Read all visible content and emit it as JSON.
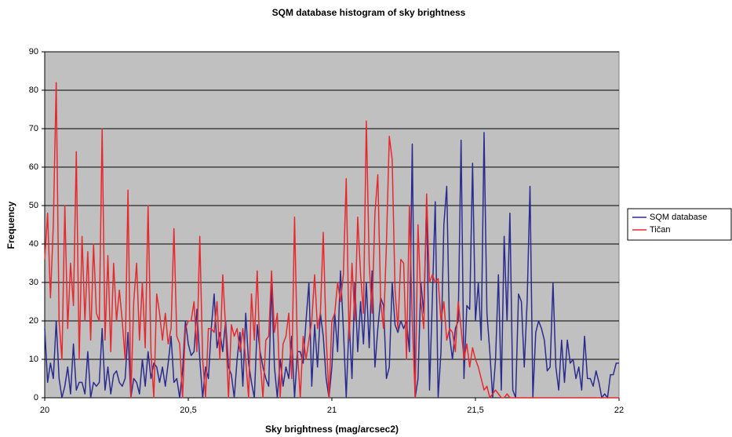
{
  "chart_data": {
    "type": "line",
    "title": "SQM database histogram of sky brightness",
    "xlabel": "Sky brightness (mag/arcsec2)",
    "ylabel": "Frequency",
    "x": [
      20,
      20.01,
      20.02,
      20.03,
      20.04,
      20.05,
      20.06,
      20.07,
      20.08,
      20.09,
      20.1,
      20.11,
      20.12,
      20.13,
      20.14,
      20.15,
      20.16,
      20.17,
      20.18,
      20.19,
      20.2,
      20.21,
      20.22,
      20.23,
      20.24,
      20.25,
      20.26,
      20.27,
      20.28,
      20.29,
      20.3,
      20.31,
      20.32,
      20.33,
      20.34,
      20.35,
      20.36,
      20.37,
      20.38,
      20.39,
      20.4,
      20.41,
      20.42,
      20.43,
      20.44,
      20.45,
      20.46,
      20.47,
      20.48,
      20.49,
      20.5,
      20.51,
      20.52,
      20.53,
      20.54,
      20.55,
      20.56,
      20.57,
      20.58,
      20.59,
      20.6,
      20.61,
      20.62,
      20.63,
      20.64,
      20.65,
      20.66,
      20.67,
      20.68,
      20.69,
      20.7,
      20.71,
      20.72,
      20.73,
      20.74,
      20.75,
      20.76,
      20.77,
      20.78,
      20.79,
      20.8,
      20.81,
      20.82,
      20.83,
      20.84,
      20.85,
      20.86,
      20.87,
      20.88,
      20.89,
      20.9,
      20.91,
      20.92,
      20.93,
      20.94,
      20.95,
      20.96,
      20.97,
      20.98,
      20.99,
      21,
      21.01,
      21.02,
      21.03,
      21.04,
      21.05,
      21.06,
      21.07,
      21.08,
      21.09,
      21.1,
      21.11,
      21.12,
      21.13,
      21.14,
      21.15,
      21.16,
      21.17,
      21.18,
      21.19,
      21.2,
      21.21,
      21.22,
      21.23,
      21.24,
      21.25,
      21.26,
      21.27,
      21.28,
      21.29,
      21.3,
      21.31,
      21.32,
      21.33,
      21.34,
      21.35,
      21.36,
      21.37,
      21.38,
      21.39,
      21.4,
      21.41,
      21.42,
      21.43,
      21.44,
      21.45,
      21.46,
      21.47,
      21.48,
      21.49,
      21.5,
      21.51,
      21.52,
      21.53,
      21.54,
      21.55,
      21.56,
      21.57,
      21.58,
      21.59,
      21.6,
      21.61,
      21.62,
      21.63,
      21.64,
      21.65,
      21.66,
      21.67,
      21.68,
      21.69,
      21.7,
      21.71,
      21.72,
      21.73,
      21.74,
      21.75,
      21.76,
      21.77,
      21.78,
      21.79,
      21.8,
      21.81,
      21.82,
      21.83,
      21.84,
      21.85,
      21.86,
      21.87,
      21.88,
      21.89,
      21.9,
      21.91,
      21.92,
      21.93,
      21.94,
      21.95,
      21.96,
      21.97,
      21.98,
      21.99,
      22
    ],
    "series": [
      {
        "name": "SQM database",
        "color": "#2b2b8f",
        "values": [
          18,
          4,
          9,
          5,
          20,
          5,
          0,
          3,
          8,
          1,
          14,
          2,
          4,
          4,
          1,
          12,
          0,
          4,
          3,
          4,
          18,
          2,
          8,
          1,
          6,
          7,
          4,
          3,
          5,
          17,
          0,
          5,
          4,
          1,
          10,
          3,
          12,
          5,
          9,
          8,
          4,
          8,
          3,
          9,
          16,
          4,
          5,
          0,
          7,
          20,
          14,
          11,
          12,
          23,
          10,
          0,
          8,
          5,
          18,
          27,
          13,
          17,
          12,
          20,
          8,
          6,
          0,
          10,
          17,
          3,
          22,
          9,
          4,
          0,
          19,
          12,
          8,
          5,
          3,
          30,
          8,
          0,
          10,
          3,
          8,
          5,
          16,
          0,
          12,
          12,
          9,
          20,
          30,
          3,
          19,
          8,
          22,
          16,
          5,
          0,
          8,
          22,
          12,
          33,
          18,
          0,
          20,
          5,
          30,
          12,
          25,
          14,
          30,
          13,
          33,
          8,
          18,
          26,
          24,
          5,
          8,
          30,
          19,
          17,
          20,
          18,
          20,
          12,
          66,
          0,
          5,
          30,
          22,
          51,
          2,
          26,
          51,
          0,
          12,
          45,
          55,
          16,
          10,
          18,
          20,
          67,
          5,
          24,
          23,
          61,
          20,
          30,
          15,
          69,
          22,
          12,
          0,
          10,
          32,
          2,
          42,
          20,
          48,
          2,
          0,
          27,
          25,
          8,
          25,
          55,
          0,
          17,
          20,
          18,
          15,
          7,
          8,
          30,
          8,
          2,
          15,
          4,
          15,
          9,
          10,
          5,
          8,
          2,
          16,
          5,
          5,
          3,
          7,
          4,
          0,
          1,
          0,
          6,
          6,
          9,
          9
        ]
      },
      {
        "name": "Tičan",
        "color": "#e8282e",
        "values": [
          36,
          48,
          26,
          45,
          82,
          20,
          10,
          50,
          18,
          35,
          24,
          64,
          10,
          42,
          20,
          38,
          15,
          40,
          22,
          20,
          70,
          15,
          37,
          12,
          35,
          20,
          28,
          20,
          10,
          54,
          0,
          25,
          35,
          15,
          30,
          13,
          50,
          12,
          0,
          27,
          22,
          15,
          22,
          14,
          18,
          44,
          16,
          14,
          0,
          18,
          20,
          20,
          25,
          12,
          42,
          10,
          0,
          18,
          18,
          17,
          25,
          10,
          32,
          18,
          0,
          19,
          16,
          18,
          12,
          18,
          10,
          0,
          27,
          15,
          33,
          10,
          0,
          15,
          16,
          33,
          17,
          22,
          0,
          14,
          16,
          22,
          5,
          47,
          12,
          0,
          16,
          10,
          15,
          20,
          32,
          18,
          22,
          43,
          16,
          0,
          20,
          22,
          30,
          25,
          32,
          57,
          15,
          35,
          20,
          47,
          32,
          22,
          72,
          35,
          22,
          48,
          58,
          25,
          18,
          40,
          68,
          62,
          28,
          18,
          36,
          35,
          10,
          50,
          20,
          0,
          45,
          25,
          18,
          53,
          30,
          32,
          30,
          31,
          20,
          25,
          15,
          18,
          17,
          12,
          25,
          18,
          10,
          14,
          8,
          13,
          10,
          8,
          5,
          2,
          3,
          0,
          1,
          2,
          1,
          0,
          0,
          1,
          0,
          0,
          0,
          0,
          0,
          0,
          0,
          0,
          0,
          0,
          0,
          0,
          0,
          0,
          0,
          0,
          0,
          0,
          0,
          0,
          0,
          0,
          0,
          0,
          0,
          0,
          0,
          0,
          0,
          0,
          0,
          0,
          0,
          0,
          0,
          0,
          0,
          0,
          0
        ]
      }
    ],
    "xlim": [
      20,
      22
    ],
    "ylim": [
      0,
      90
    ],
    "xticks": [
      20,
      {
        "value": 20.5,
        "label": "20,5"
      },
      21,
      {
        "value": 21.5,
        "label": "21,5"
      },
      22
    ],
    "yticks": [
      0,
      10,
      20,
      30,
      40,
      50,
      60,
      70,
      80,
      90
    ],
    "grid": true,
    "legend": "right",
    "background": "#c0c0c0"
  }
}
